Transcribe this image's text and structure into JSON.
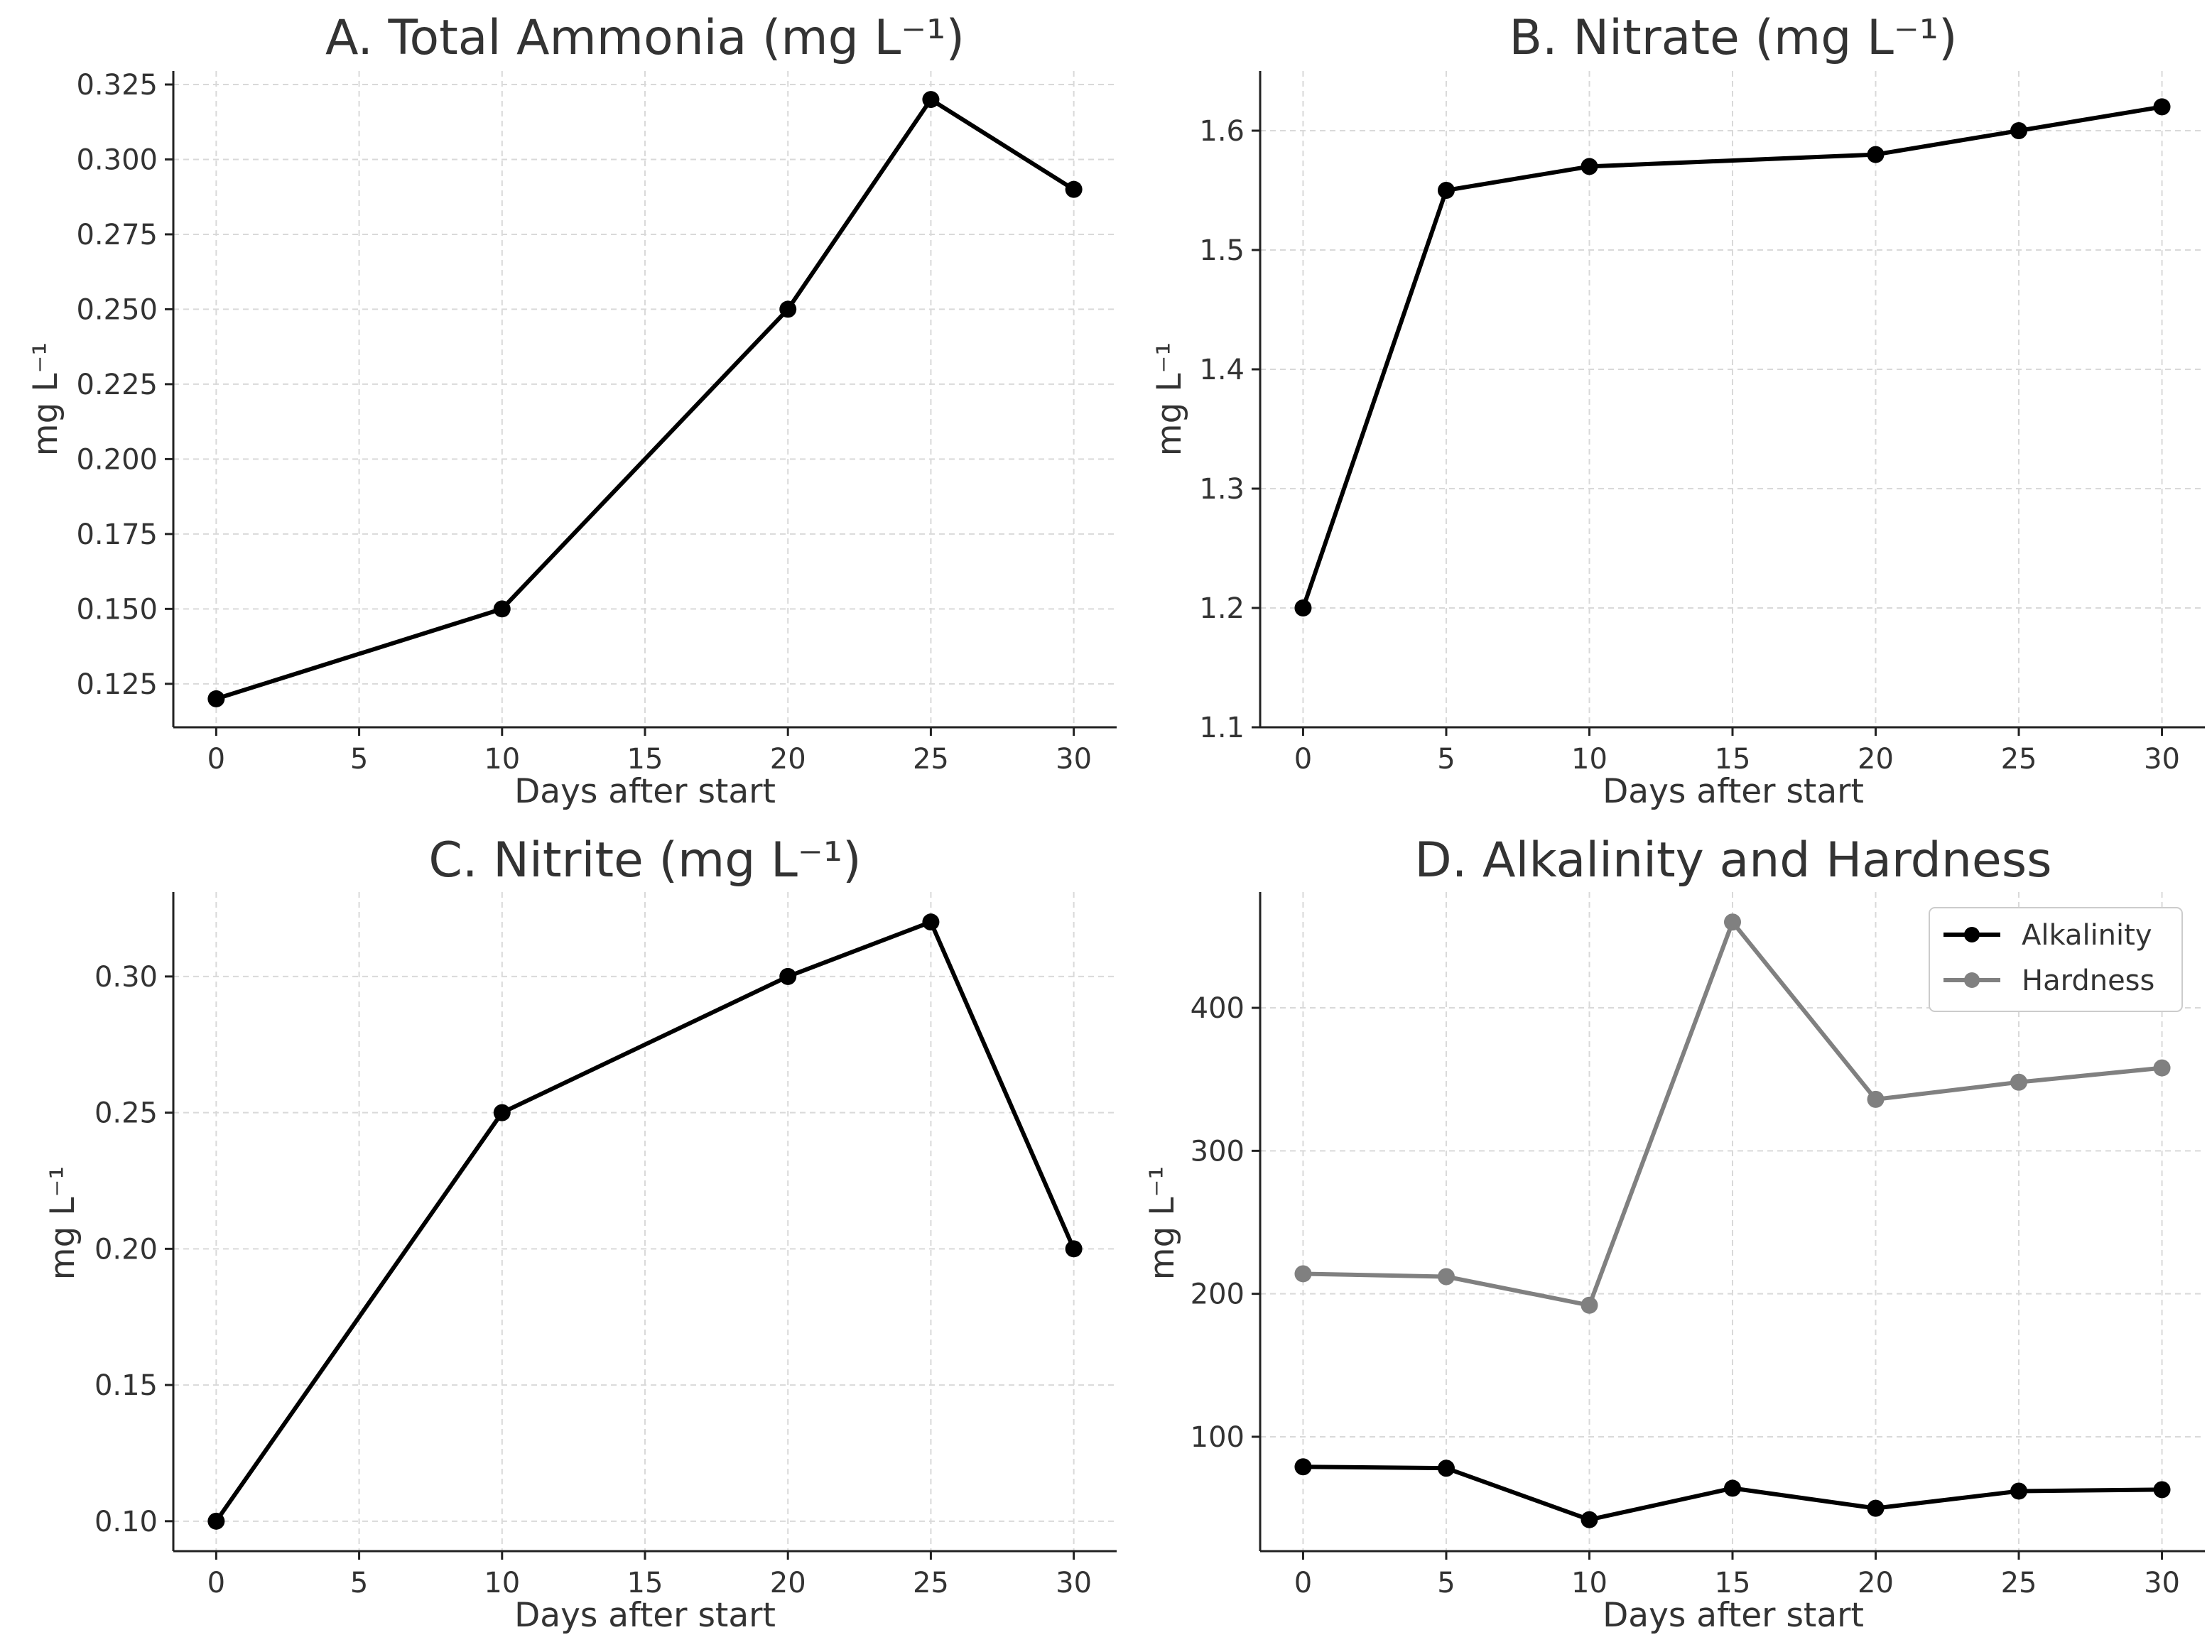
{
  "chart_data": [
    {
      "type": "line",
      "title": "A. Total Ammonia (mg L⁻¹)",
      "xlabel": "Days after start",
      "ylabel": "mg L⁻¹",
      "xlim": [
        -1.5,
        31.5
      ],
      "ylim": [
        0.1105,
        0.3295
      ],
      "xticks": [
        0,
        5,
        10,
        15,
        20,
        25,
        30
      ],
      "yticks": [
        0.125,
        0.15,
        0.175,
        0.2,
        0.225,
        0.25,
        0.275,
        0.3,
        0.325
      ],
      "ytick_decimals": 3,
      "grid": true,
      "legend": null,
      "series": [
        {
          "name": "Total Ammonia",
          "color": "#000000",
          "x": [
            0,
            10,
            20,
            25,
            30
          ],
          "y": [
            0.12,
            0.15,
            0.25,
            0.32,
            0.29
          ]
        }
      ]
    },
    {
      "type": "line",
      "title": "B. Nitrate (mg L⁻¹)",
      "xlabel": "Days after start",
      "ylabel": "mg L⁻¹",
      "xlim": [
        -1.5,
        31.5
      ],
      "ylim": [
        1.1,
        1.65
      ],
      "xticks": [
        0,
        5,
        10,
        15,
        20,
        25,
        30
      ],
      "yticks": [
        1.1,
        1.2,
        1.3,
        1.4,
        1.5,
        1.6
      ],
      "ytick_decimals": 1,
      "grid": true,
      "legend": null,
      "series": [
        {
          "name": "Nitrate",
          "color": "#000000",
          "x": [
            0,
            5,
            10,
            20,
            25,
            30
          ],
          "y": [
            1.2,
            1.55,
            1.57,
            1.58,
            1.6,
            1.62
          ]
        }
      ]
    },
    {
      "type": "line",
      "title": "C. Nitrite (mg L⁻¹)",
      "xlabel": "Days after start",
      "ylabel": "mg L⁻¹",
      "xlim": [
        -1.5,
        31.5
      ],
      "ylim": [
        0.089,
        0.331
      ],
      "xticks": [
        0,
        5,
        10,
        15,
        20,
        25,
        30
      ],
      "yticks": [
        0.1,
        0.15,
        0.2,
        0.25,
        0.3
      ],
      "ytick_decimals": 2,
      "grid": true,
      "legend": null,
      "series": [
        {
          "name": "Nitrite",
          "color": "#000000",
          "x": [
            0,
            10,
            20,
            25,
            30
          ],
          "y": [
            0.1,
            0.25,
            0.3,
            0.32,
            0.2
          ]
        }
      ]
    },
    {
      "type": "line",
      "title": "D. Alkalinity and Hardness",
      "xlabel": "Days after start",
      "ylabel": "mg L⁻¹",
      "xlim": [
        -1.5,
        31.5
      ],
      "ylim": [
        20,
        481
      ],
      "xticks": [
        0,
        5,
        10,
        15,
        20,
        25,
        30
      ],
      "yticks": [
        100,
        200,
        300,
        400
      ],
      "ytick_decimals": 0,
      "grid": true,
      "legend": "top-right",
      "series": [
        {
          "name": "Alkalinity",
          "color": "#000000",
          "x": [
            0,
            5,
            10,
            15,
            20,
            25,
            30
          ],
          "y": [
            79,
            78,
            42,
            64,
            50,
            62,
            63
          ]
        },
        {
          "name": "Hardness",
          "color": "#808080",
          "x": [
            0,
            5,
            10,
            15,
            20,
            25,
            30
          ],
          "y": [
            214,
            212,
            192,
            460,
            336,
            348,
            358
          ]
        }
      ]
    }
  ]
}
